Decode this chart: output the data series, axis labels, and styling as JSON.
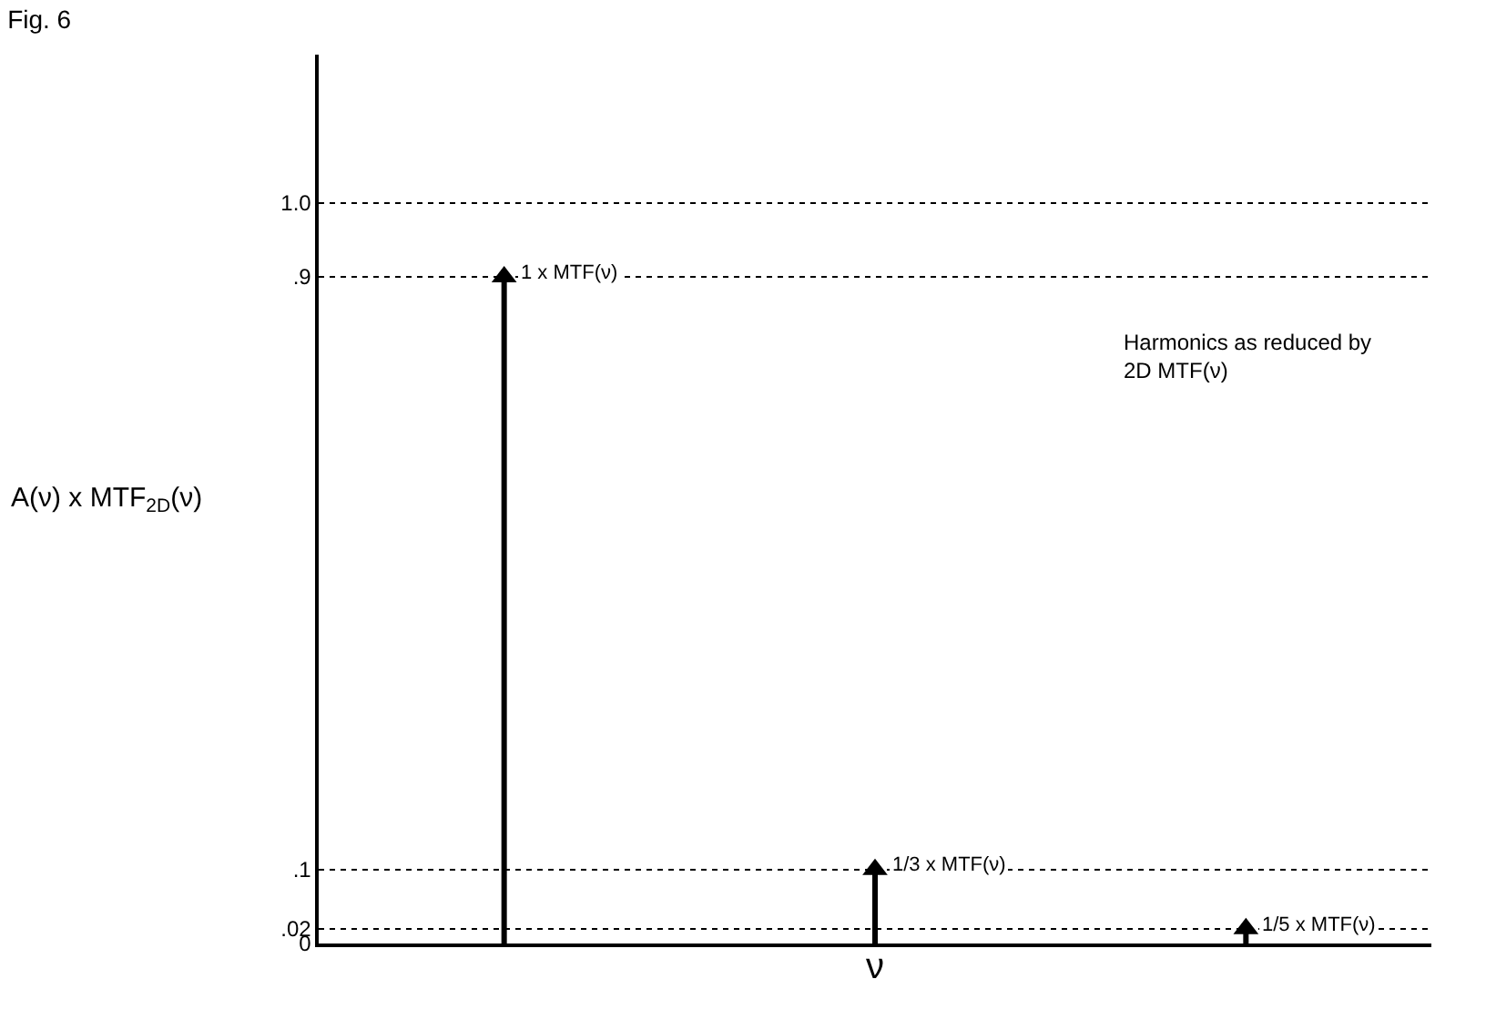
{
  "chart_data": {
    "type": "lollipop",
    "marker": "triangle",
    "title": "Fig. 6",
    "xlabel": "ν",
    "ylabel": "A(ν) x MTF$_{2D}$(ν)",
    "categories": [
      null,
      null,
      null
    ],
    "values": [
      0.9,
      0.1,
      0.02
    ],
    "value_labels": [
      "1 x MTF(ν)",
      "1/3 x MTF(ν)",
      "1/5 x MTF(ν)"
    ],
    "color": "#000000",
    "ylim": [
      0,
      1.2
    ],
    "yticks": [
      0,
      {
        "value": 0.02,
        "label": ".02"
      },
      {
        "value": 0.1,
        "label": ".1"
      },
      {
        "value": 0.9,
        "label": ".9"
      },
      {
        "value": 1.0,
        "label": "1.0"
      }
    ],
    "annotations": [
      "Harmonics as reduced by\n2D MTF(ν)"
    ],
    "grid": "y",
    "line_style": "dotted"
  }
}
